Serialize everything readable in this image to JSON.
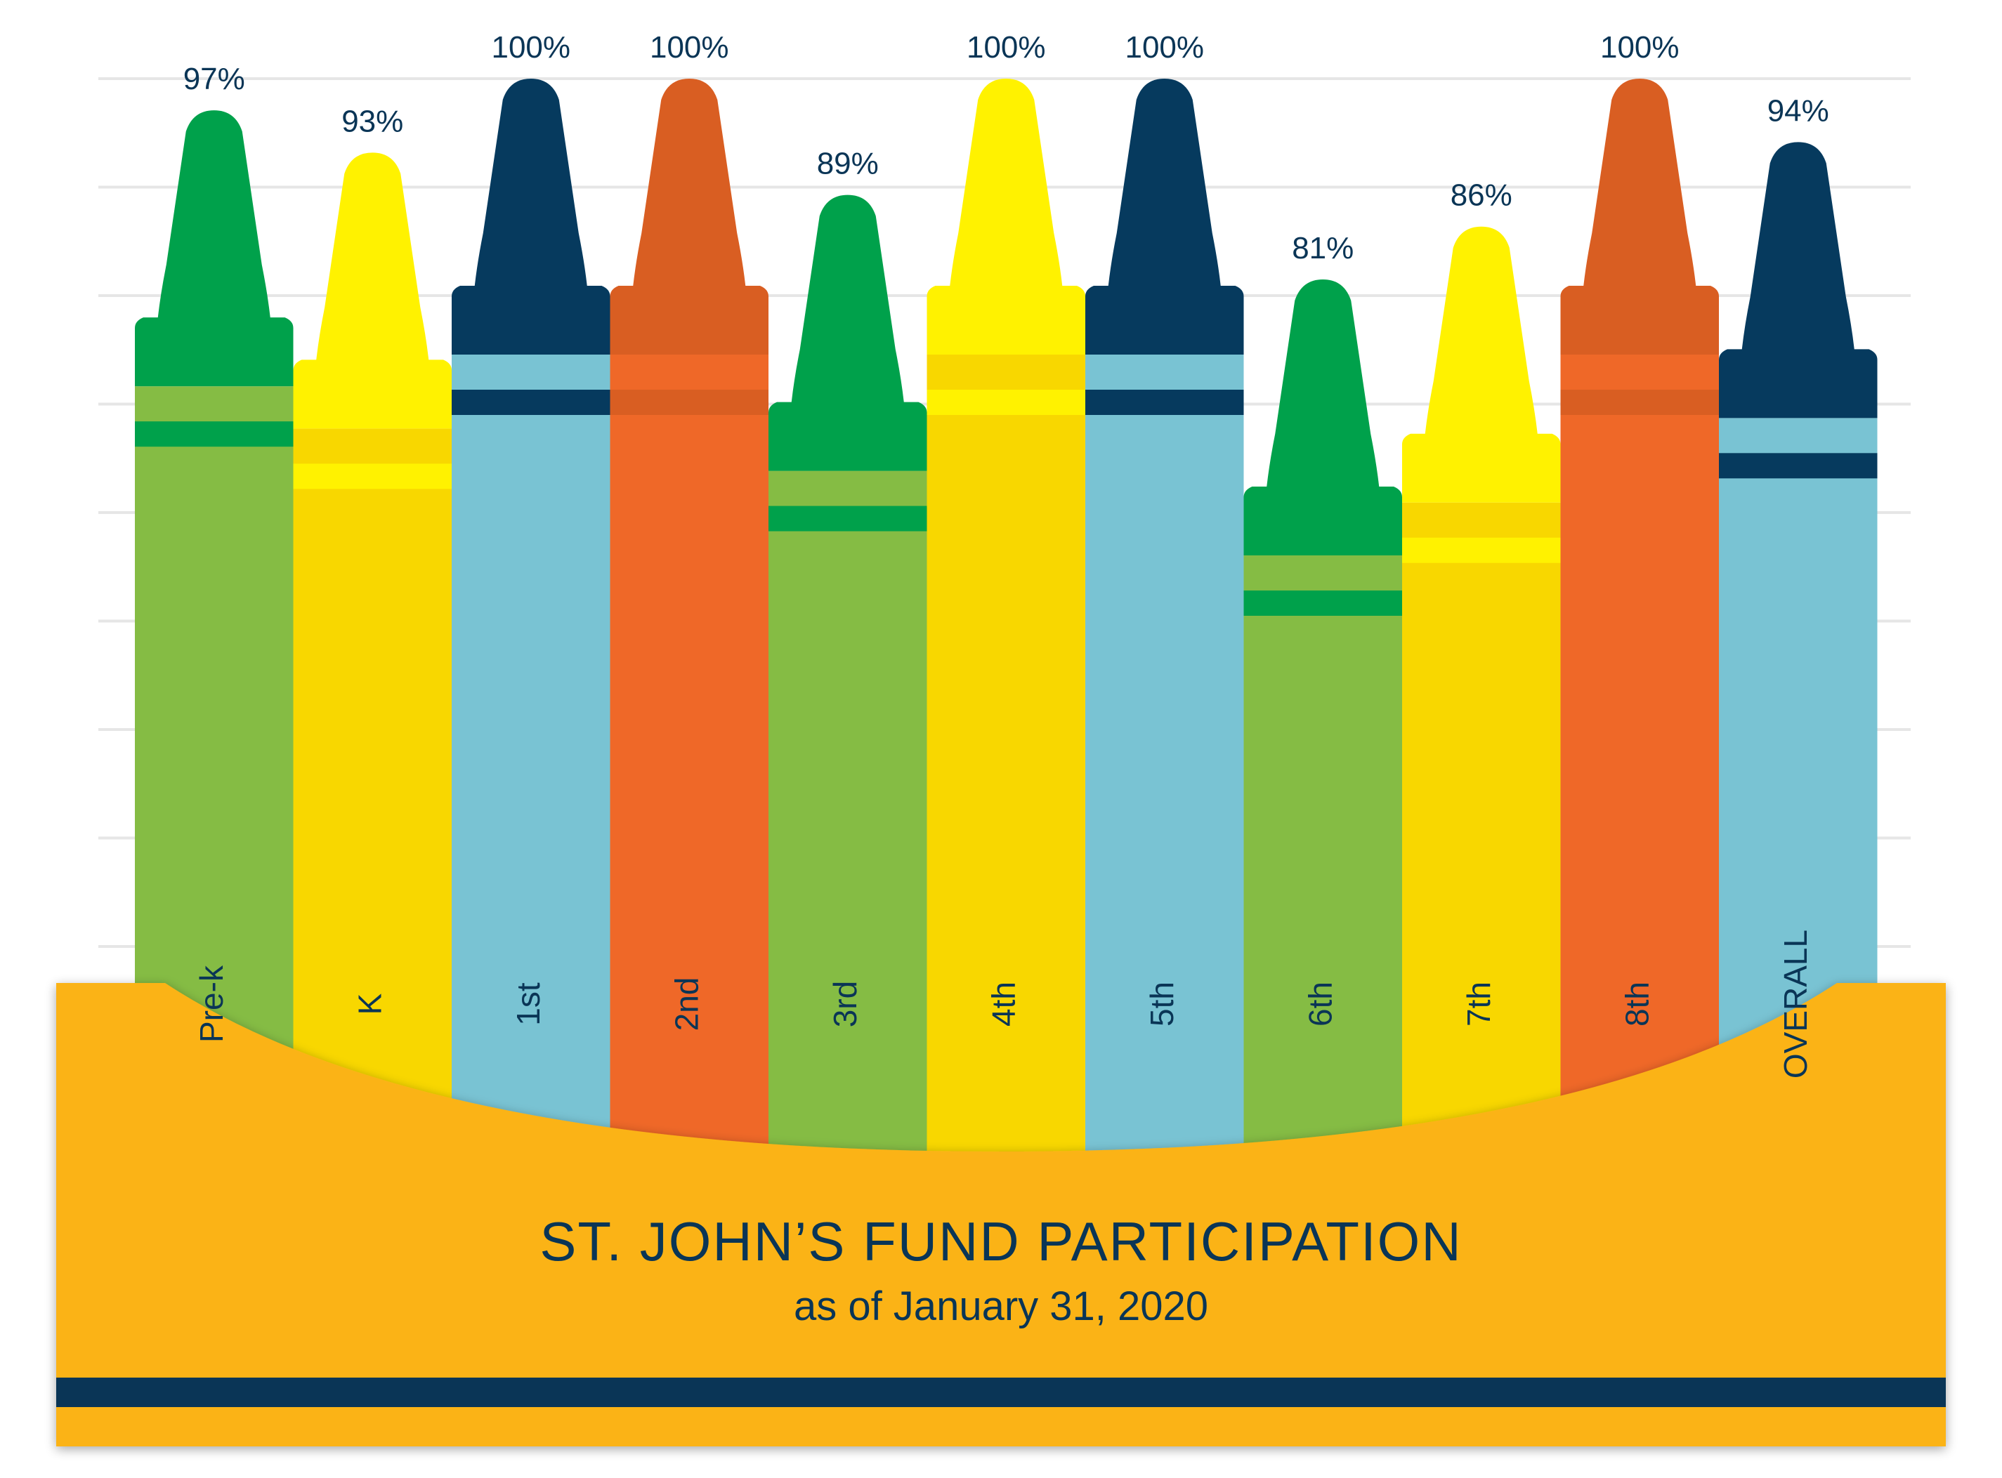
{
  "colors": {
    "background": "#ffffff",
    "gridline": "#e6e6e6",
    "text_navy": "#0a3556",
    "box_gold": "#fbb316",
    "box_stripe": "#0a3556",
    "green": {
      "tip": "#00a14b",
      "body": "#85bc44",
      "band": "#00a14b"
    },
    "yellow": {
      "tip": "#fff200",
      "body": "#f8d700",
      "band": "#fff200"
    },
    "navy_blue": {
      "tip": "#063a5e",
      "body": "#79c3d3",
      "band": "#063a5e"
    },
    "orange": {
      "tip": "#d95e22",
      "body": "#ef6828",
      "band": "#d95e22"
    }
  },
  "chart_data": {
    "type": "bar",
    "title": "ST. JOHN’S FUND PARTICIPATION",
    "subtitle": "as of January 31, 2020",
    "xlabel": "",
    "ylabel": "",
    "ylim": [
      0,
      100
    ],
    "grid": true,
    "categories": [
      "Pre-k",
      "K",
      "1st",
      "2nd",
      "3rd",
      "4th",
      "5th",
      "6th",
      "7th",
      "8th",
      "OVERALL"
    ],
    "values": [
      97,
      93,
      100,
      100,
      89,
      100,
      100,
      81,
      86,
      100,
      94
    ],
    "value_labels": [
      "97%",
      "93%",
      "100%",
      "100%",
      "89%",
      "100%",
      "100%",
      "81%",
      "86%",
      "100%",
      "94%"
    ],
    "bar_colors": [
      "green",
      "yellow",
      "navy_blue",
      "orange",
      "green",
      "yellow",
      "navy_blue",
      "green",
      "yellow",
      "orange",
      "navy_blue"
    ]
  }
}
